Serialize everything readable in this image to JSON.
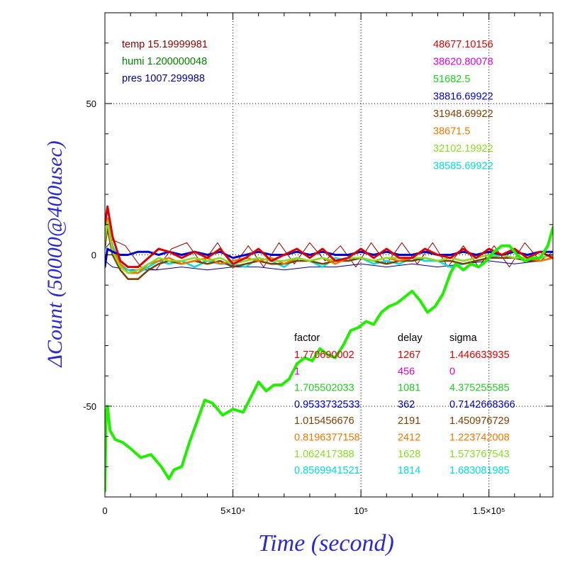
{
  "chart_data": {
    "type": "line",
    "xlabel": "Time (second)",
    "ylabel": "ΔCount (50000@400usec)",
    "xlim": [
      0,
      175000
    ],
    "ylim": [
      -80,
      80
    ],
    "x_ticks": [
      {
        "value": 0,
        "label": "0"
      },
      {
        "value": 50000,
        "label": "5×10⁴"
      },
      {
        "value": 100000,
        "label": "10⁵"
      },
      {
        "value": 150000,
        "label": "1.5×10⁵"
      }
    ],
    "y_ticks": [
      {
        "value": -50,
        "label": "-50"
      },
      {
        "value": 0,
        "label": "0"
      },
      {
        "value": 50,
        "label": "50"
      }
    ],
    "grid": true,
    "env": [
      {
        "label": "temp",
        "value": "15.19999981",
        "color": "#8b0000"
      },
      {
        "label": "humi",
        "value": "1.200000048",
        "color": "#008000"
      },
      {
        "label": "pres",
        "value": "1007.299988",
        "color": "#00008b"
      }
    ],
    "counts": [
      {
        "value": "48677.10156",
        "color": "#dd0000"
      },
      {
        "value": "38620.80078",
        "color": "#dd00dd"
      },
      {
        "value": "51682.5",
        "color": "#22cc22"
      },
      {
        "value": "38816.69922",
        "color": "#0000cc"
      },
      {
        "value": "31948.69922",
        "color": "#7a3f00"
      },
      {
        "value": "38671.5",
        "color": "#ee7700"
      },
      {
        "value": "32102.19922",
        "color": "#88dd22"
      },
      {
        "value": "38585.69922",
        "color": "#00dddd"
      }
    ],
    "table_headers": {
      "factor": "factor",
      "delay": "delay",
      "sigma": "sigma"
    },
    "table_rows": [
      {
        "factor": "1.770690002",
        "delay": "1267",
        "sigma": "1.446633935",
        "color": "#dd0000"
      },
      {
        "factor": "1",
        "delay": "456",
        "sigma": "0",
        "color": "#dd00dd"
      },
      {
        "factor": "1.705502033",
        "delay": "1081",
        "sigma": "4.375255585",
        "color": "#22cc22"
      },
      {
        "factor": "0.9533732533",
        "delay": "362",
        "sigma": "0.7142668366",
        "color": "#0000cc"
      },
      {
        "factor": "1.015456676",
        "delay": "2191",
        "sigma": "1.450976729",
        "color": "#7a3f00"
      },
      {
        "factor": "0.8196377158",
        "delay": "2412",
        "sigma": "1.223742008",
        "color": "#ee7700"
      },
      {
        "factor": "1.062417388",
        "delay": "1628",
        "sigma": "1.573767543",
        "color": "#88dd22"
      },
      {
        "factor": "0.8569941521",
        "delay": "1814",
        "sigma": "1.683081985",
        "color": "#00dddd"
      }
    ],
    "series": [
      {
        "color": "#8b0000",
        "width": 1,
        "x": [
          0,
          3000,
          8000,
          14000,
          20000,
          26000,
          32000,
          38000,
          44000,
          50000,
          56000,
          62000,
          68000,
          74000,
          80000,
          86000,
          92000,
          98000,
          104000,
          110000,
          116000,
          122000,
          128000,
          134000,
          140000,
          146000,
          152000,
          158000,
          164000,
          170000,
          175000
        ],
        "y": [
          2,
          5,
          3,
          -4,
          -5,
          2,
          4,
          -3,
          4,
          -4,
          3,
          -4,
          4,
          -3,
          4,
          -2,
          3,
          -4,
          4,
          -3,
          4,
          -3,
          4,
          -4,
          3,
          -4,
          3,
          -4,
          4,
          -2,
          1
        ]
      },
      {
        "color": "#00008b",
        "width": 1,
        "x": [
          0,
          3000,
          10000,
          20000,
          30000,
          40000,
          50000,
          60000,
          70000,
          80000,
          90000,
          100000,
          110000,
          120000,
          130000,
          140000,
          150000,
          160000,
          170000,
          175000
        ],
        "y": [
          -2,
          -4,
          -5,
          -5,
          -4,
          -5,
          -4,
          -4,
          -5,
          -4,
          -4,
          -3,
          -4,
          -3,
          -4,
          -3,
          -2,
          -3,
          -2,
          -1
        ]
      },
      {
        "color": "#00dddd",
        "width": 2.5,
        "x": [
          0,
          1000,
          3000,
          6000,
          9000,
          13000,
          17000,
          21000,
          25000,
          30000,
          35000,
          40000,
          45000,
          50000,
          55000,
          60000,
          65000,
          70000,
          75000,
          80000,
          85000,
          90000,
          95000,
          100000,
          105000,
          110000,
          115000,
          120000,
          125000,
          130000,
          135000,
          140000,
          145000,
          150000,
          155000,
          160000,
          165000,
          170000,
          175000
        ],
        "y": [
          2,
          10,
          3,
          -3,
          -5,
          -6,
          -4,
          -2,
          -3,
          -2,
          -4,
          -2,
          -3,
          -3,
          -4,
          -1,
          -2,
          -4,
          -1,
          -2,
          -4,
          -1,
          -2,
          -1,
          -3,
          -2,
          -3,
          -1,
          -2,
          -2,
          -4,
          -3,
          -2,
          -1,
          0,
          -1,
          -2,
          -1,
          0
        ]
      },
      {
        "color": "#7a3f00",
        "width": 2.5,
        "x": [
          0,
          1000,
          3000,
          6000,
          9000,
          13000,
          17000,
          21000,
          25000,
          30000,
          35000,
          40000,
          45000,
          50000,
          55000,
          60000,
          65000,
          70000,
          75000,
          80000,
          85000,
          90000,
          95000,
          100000,
          105000,
          110000,
          115000,
          120000,
          125000,
          130000,
          135000,
          140000,
          145000,
          150000,
          155000,
          160000,
          165000,
          170000,
          175000
        ],
        "y": [
          3,
          9,
          0,
          -5,
          -8,
          -8,
          -5,
          -3,
          -2,
          -3,
          -2,
          -3,
          -2,
          -4,
          -3,
          -2,
          -3,
          -3,
          -2,
          -2,
          -3,
          -2,
          -2,
          -1,
          -2,
          -3,
          -2,
          -2,
          -1,
          -2,
          -2,
          -3,
          -2,
          -1,
          -1,
          -1,
          -2,
          -2,
          -1
        ]
      },
      {
        "color": "#ee7700",
        "width": 2.5,
        "x": [
          0,
          1000,
          3000,
          6000,
          9000,
          13000,
          17000,
          21000,
          25000,
          30000,
          35000,
          40000,
          45000,
          50000,
          55000,
          60000,
          65000,
          70000,
          75000,
          80000,
          85000,
          90000,
          95000,
          100000,
          105000,
          110000,
          115000,
          120000,
          125000,
          130000,
          135000,
          140000,
          145000,
          150000,
          155000,
          160000,
          165000,
          170000,
          175000
        ],
        "y": [
          4,
          12,
          2,
          -3,
          -6,
          -6,
          -3,
          -2,
          -1,
          -3,
          -2,
          -1,
          -3,
          -2,
          -1,
          -2,
          -1,
          -3,
          -1,
          -2,
          -1,
          -3,
          -1,
          -1,
          -2,
          -1,
          -2,
          -1,
          -1,
          -2,
          -1,
          -2,
          -1,
          0,
          0,
          -1,
          -1,
          -2,
          -1
        ]
      },
      {
        "color": "#88dd22",
        "width": 2.5,
        "x": [
          0,
          1000,
          3000,
          6000,
          9000,
          13000,
          17000,
          21000,
          25000,
          30000,
          35000,
          40000,
          45000,
          50000,
          55000,
          60000,
          65000,
          70000,
          75000,
          80000,
          85000,
          90000,
          95000,
          100000,
          105000,
          110000,
          115000,
          120000,
          125000,
          130000,
          135000,
          140000,
          145000,
          150000,
          155000,
          160000,
          165000,
          170000,
          175000
        ],
        "y": [
          5,
          11,
          1,
          -4,
          -6,
          -5,
          -3,
          -1,
          -2,
          -2,
          -1,
          -2,
          -1,
          -3,
          -2,
          -1,
          -2,
          -2,
          -1,
          -2,
          -1,
          -2,
          -1,
          -1,
          -2,
          -1,
          -1,
          -1,
          -1,
          -2,
          -1,
          -2,
          -1,
          0,
          0,
          -1,
          -1,
          -1,
          0
        ]
      },
      {
        "color": "#0000cc",
        "width": 3,
        "x": [
          0,
          1000,
          3000,
          6000,
          9000,
          13000,
          17000,
          21000,
          25000,
          30000,
          35000,
          40000,
          45000,
          50000,
          55000,
          60000,
          65000,
          70000,
          75000,
          80000,
          85000,
          90000,
          95000,
          100000,
          105000,
          110000,
          115000,
          120000,
          125000,
          130000,
          135000,
          140000,
          145000,
          150000,
          155000,
          160000,
          165000,
          170000,
          175000
        ],
        "y": [
          -4,
          2,
          1,
          0,
          0,
          1,
          1,
          0,
          1,
          0,
          1,
          0,
          1,
          -1,
          0,
          1,
          0,
          0,
          1,
          0,
          1,
          0,
          0,
          1,
          0,
          1,
          0,
          0,
          1,
          0,
          0,
          1,
          0,
          1,
          0,
          1,
          0,
          1,
          1
        ]
      },
      {
        "color": "#dd0000",
        "width": 3,
        "x": [
          0,
          1000,
          3000,
          6000,
          9000,
          13000,
          17000,
          21000,
          25000,
          30000,
          35000,
          40000,
          45000,
          50000,
          55000,
          60000,
          65000,
          70000,
          75000,
          80000,
          85000,
          90000,
          95000,
          100000,
          105000,
          110000,
          115000,
          120000,
          125000,
          130000,
          135000,
          140000,
          145000,
          150000,
          155000,
          160000,
          165000,
          170000,
          175000
        ],
        "y": [
          10,
          16,
          6,
          -2,
          -4,
          -4,
          -1,
          2,
          1,
          -1,
          1,
          -1,
          2,
          -3,
          -1,
          2,
          -2,
          0,
          2,
          -1,
          2,
          -2,
          -1,
          2,
          -1,
          2,
          -1,
          -1,
          2,
          0,
          -1,
          2,
          -1,
          2,
          0,
          2,
          -1,
          1,
          -1
        ]
      },
      {
        "color": "#22ee00",
        "width": 4,
        "x": [
          0,
          500,
          1000,
          2000,
          4000,
          7000,
          10000,
          14000,
          18000,
          22000,
          25000,
          27000,
          30000,
          33000,
          36000,
          39000,
          42000,
          46000,
          50000,
          54000,
          57000,
          60000,
          63000,
          66000,
          69000,
          72000,
          75000,
          78000,
          81000,
          84000,
          87000,
          90000,
          93000,
          96000,
          99000,
          102000,
          105000,
          108000,
          111000,
          114000,
          117000,
          120000,
          123000,
          126000,
          129000,
          132000,
          135000,
          137000,
          140000,
          143000,
          146000,
          149000,
          152000,
          155000,
          158000,
          161000,
          164000,
          167000,
          170000,
          173000,
          175000
        ],
        "y": [
          -78,
          -52,
          -50,
          -58,
          -61,
          -62,
          -64,
          -67,
          -66,
          -70,
          -74,
          -71,
          -70,
          -62,
          -55,
          -48,
          -49,
          -53,
          -51,
          -52,
          -47,
          -42,
          -45,
          -43,
          -43,
          -41,
          -36,
          -34,
          -35,
          -31,
          -33,
          -34,
          -30,
          -25,
          -24,
          -22,
          -23,
          -19,
          -17,
          -16,
          -14,
          -12,
          -15,
          -19,
          -17,
          -13,
          -6,
          -3,
          -5,
          -3,
          -4,
          -2,
          1,
          3,
          3,
          0,
          -2,
          -1,
          -1,
          3,
          9
        ]
      }
    ]
  }
}
